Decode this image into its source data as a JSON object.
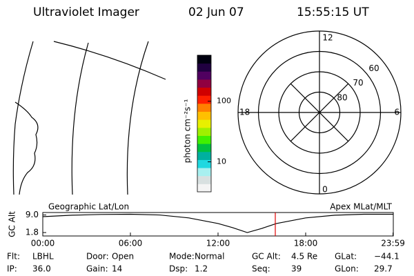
{
  "header": {
    "title": "Ultraviolet Imager",
    "date": "02 Jun 07",
    "time": "15:55:15 UT"
  },
  "colorbar": {
    "label": "photon cm⁻²s⁻¹",
    "log": true,
    "lim": [
      3.2,
      575
    ],
    "ticks": [
      10,
      100
    ],
    "colors": [
      "#f4f4f4",
      "#d8e0e0",
      "#a8f0f0",
      "#20d8e0",
      "#00b0a0",
      "#00c040",
      "#40f000",
      "#a0f000",
      "#e8f000",
      "#ffc000",
      "#ff8000",
      "#ff2000",
      "#d00000",
      "#900040",
      "#500060",
      "#200040",
      "#000010"
    ]
  },
  "polar": {
    "clock_labels": [
      "12",
      "6",
      "0",
      "18"
    ],
    "rlim": [
      90,
      50
    ],
    "lat_rings": [
      60,
      70,
      80
    ]
  },
  "chart_data": {
    "type": "line",
    "left_label": "Geographic Lat/Lon",
    "right_label": "Apex MLat/MLT",
    "ylabel": "GC Alt",
    "x": [
      0,
      2,
      4,
      6,
      8,
      10,
      12,
      13,
      14,
      15,
      16,
      18,
      20,
      22,
      23.98
    ],
    "values": [
      8.3,
      8.9,
      9.2,
      9.3,
      9.0,
      7.8,
      5.5,
      3.8,
      1.8,
      3.5,
      5.5,
      7.8,
      8.9,
      9.3,
      9.3
    ],
    "color": "#000000",
    "marker_x": 15.92,
    "marker_color": "#e00000",
    "xlim": [
      0,
      24
    ],
    "xticks": [
      {
        "value": 0,
        "label": "00:00"
      },
      {
        "value": 6,
        "label": "06:00"
      },
      {
        "value": 12,
        "label": "12:00"
      },
      {
        "value": 18,
        "label": "18:00"
      },
      {
        "value": 23.98,
        "label": "23:59"
      }
    ],
    "ylim": [
      0.4,
      10
    ],
    "yticks": [
      {
        "value": 1.8,
        "label": "1.8"
      },
      {
        "value": 9.0,
        "label": "9.0"
      }
    ]
  },
  "status": [
    {
      "label": "Flt:",
      "value": "LBHL"
    },
    {
      "label": "IP:",
      "value": "36.0"
    },
    {
      "label": "Door:",
      "value": "Open"
    },
    {
      "label": "Gain:",
      "value": "14"
    },
    {
      "label": "Mode:",
      "value": "Normal"
    },
    {
      "label": "Dsp:",
      "value": "1.2"
    },
    {
      "label": "GC Alt:",
      "value": "4.5 Re"
    },
    {
      "label": "Seq:",
      "value": "39"
    },
    {
      "label": "GLat:",
      "value": "−44.1"
    },
    {
      "label": "GLon:",
      "value": "29.7"
    }
  ]
}
